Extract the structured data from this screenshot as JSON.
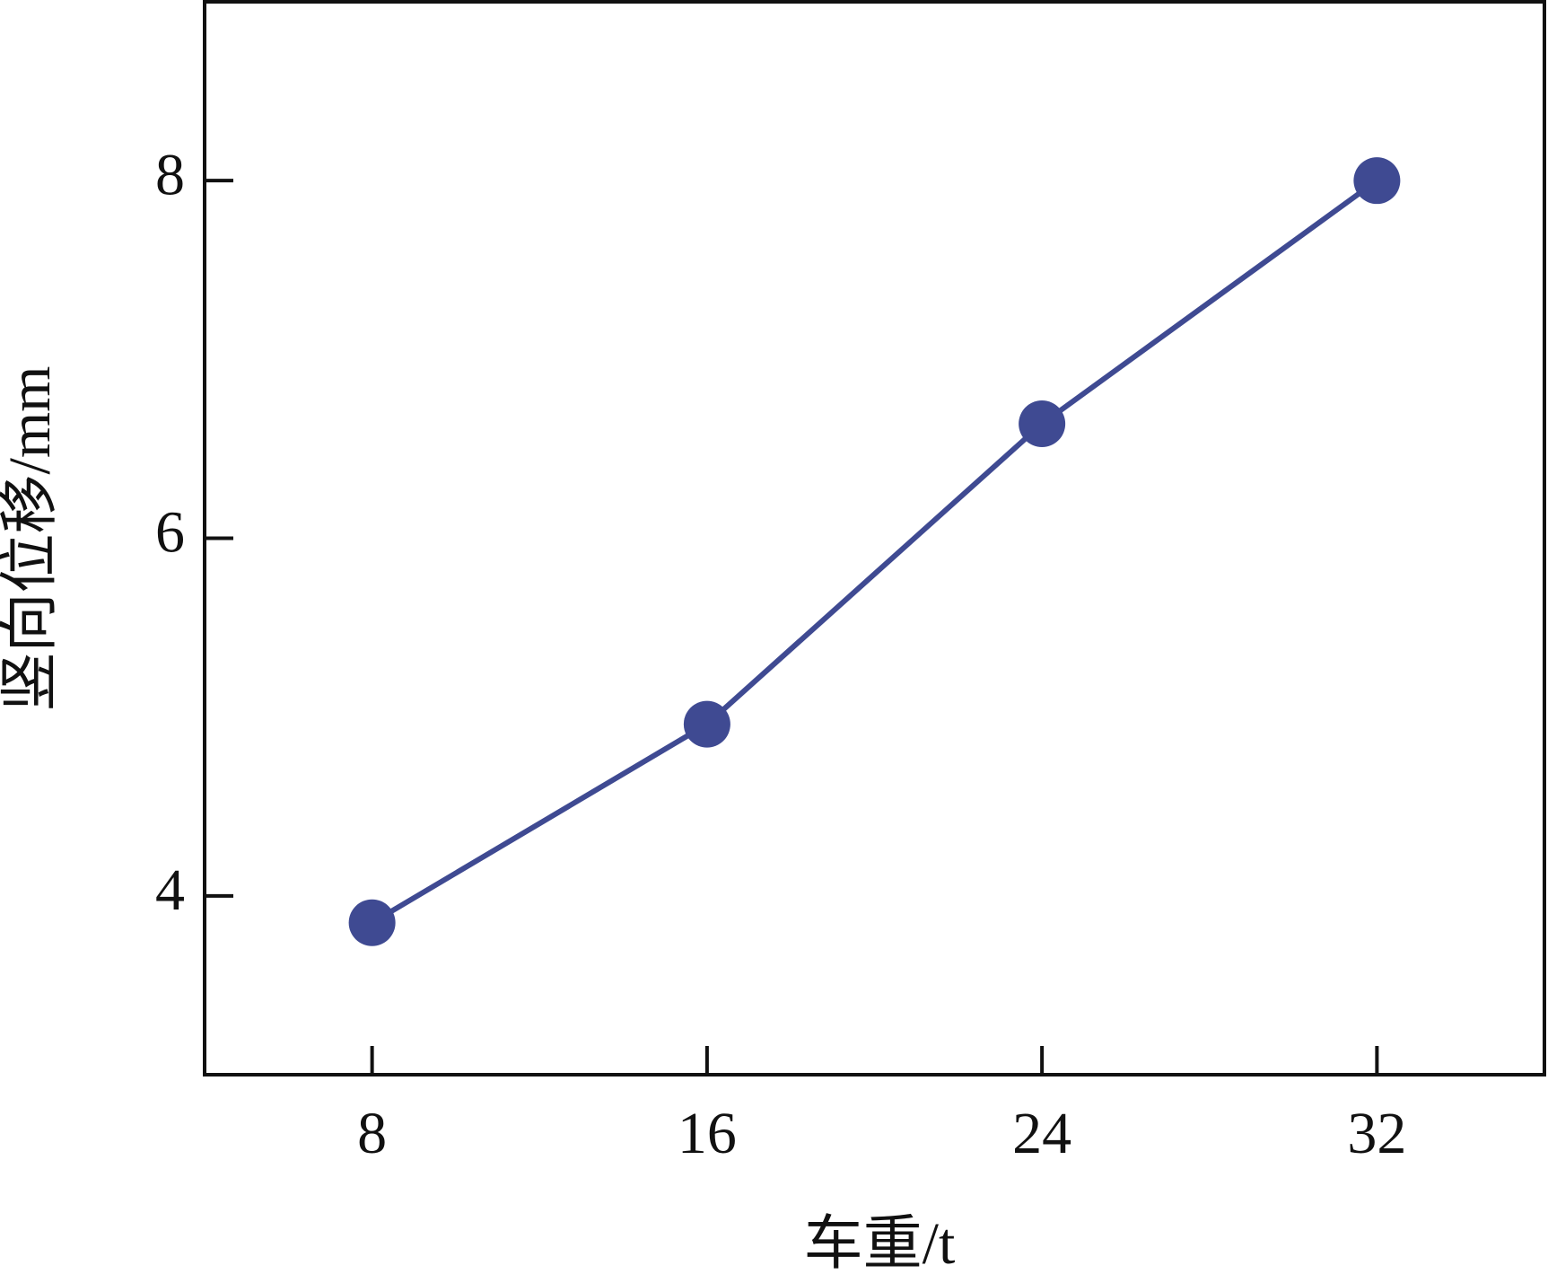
{
  "chart_data": {
    "type": "line",
    "x_label": "车重/t",
    "y_label": "竖向位移/mm",
    "x": [
      8,
      16,
      24,
      32
    ],
    "series": [
      {
        "color": "#3f4a92",
        "values": [
          3.85,
          4.96,
          6.64,
          8.0
        ]
      }
    ],
    "xlim": [
      4,
      36
    ],
    "xticks": [
      8,
      16,
      24,
      32
    ],
    "ylim": [
      3,
      9
    ],
    "yticks": [
      4,
      6,
      8
    ],
    "grid": false
  }
}
